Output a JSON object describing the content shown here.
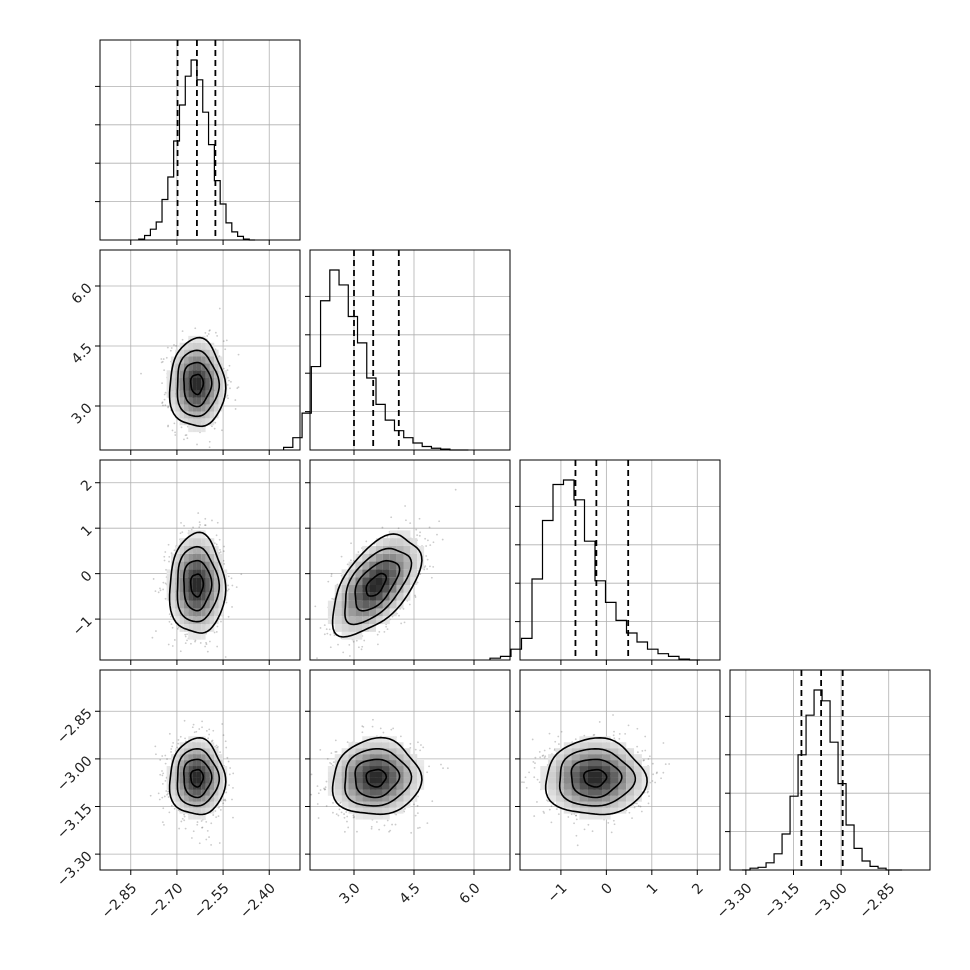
{
  "colors": {
    "line": "#000000",
    "grid": "#b0b0b0",
    "scatter": "#444444",
    "density_dark": "#000000"
  },
  "chart_data": {
    "type": "corner",
    "grid": true,
    "parameters": [
      {
        "range": [
          -2.95,
          -2.3
        ],
        "ticks": [
          -2.85,
          -2.7,
          -2.55,
          -2.4
        ],
        "tick_labels": [
          "−2.85",
          "−2.70",
          "−2.55",
          "−2.40"
        ],
        "mean": -2.635,
        "sd": 0.045,
        "quantiles": [
          -2.698,
          -2.635,
          -2.575
        ]
      },
      {
        "range": [
          1.9,
          6.9
        ],
        "ticks": [
          3.0,
          4.5,
          6.0
        ],
        "tick_labels": [
          "3.0",
          "4.5",
          "6.0"
        ],
        "mean": 3.55,
        "sd": 0.55,
        "quantiles": [
          3.0,
          3.48,
          4.12
        ]
      },
      {
        "range": [
          -1.9,
          2.5
        ],
        "ticks": [
          -1,
          0,
          1,
          2
        ],
        "tick_labels": [
          "−1",
          "0",
          "1",
          "2"
        ],
        "mean": -0.25,
        "sd": 0.55,
        "quantiles": [
          -0.68,
          -0.22,
          0.48
        ]
      },
      {
        "range": [
          -3.35,
          -2.72
        ],
        "ticks": [
          -3.3,
          -3.15,
          -3.0,
          -2.85
        ],
        "tick_labels": [
          "−3.30",
          "−3.15",
          "−3.00",
          "−2.85"
        ],
        "mean": -3.06,
        "sd": 0.06,
        "quantiles": [
          -3.125,
          -3.063,
          -2.995
        ]
      }
    ],
    "correlations": [
      [
        1,
        0,
        0,
        0
      ],
      [
        0,
        1,
        0.55,
        0.05
      ],
      [
        0,
        0.55,
        1,
        0
      ],
      [
        0,
        0.05,
        0,
        1
      ]
    ],
    "hist_bins": 20,
    "hist_counts": [
      [
        1,
        5,
        12,
        20,
        45,
        70,
        110,
        150,
        182,
        200,
        178,
        142,
        106,
        66,
        40,
        19,
        9,
        4,
        1,
        0
      ],
      [
        3,
        14,
        42,
        95,
        170,
        205,
        188,
        152,
        122,
        82,
        52,
        34,
        22,
        14,
        8,
        4,
        2,
        1,
        0,
        0
      ],
      [
        2,
        4,
        12,
        24,
        90,
        155,
        195,
        200,
        178,
        132,
        88,
        64,
        44,
        30,
        20,
        12,
        7,
        4,
        1,
        0
      ],
      [
        0,
        2,
        3,
        8,
        18,
        40,
        82,
        128,
        172,
        200,
        188,
        142,
        96,
        50,
        24,
        10,
        4,
        2,
        0,
        0
      ]
    ]
  }
}
